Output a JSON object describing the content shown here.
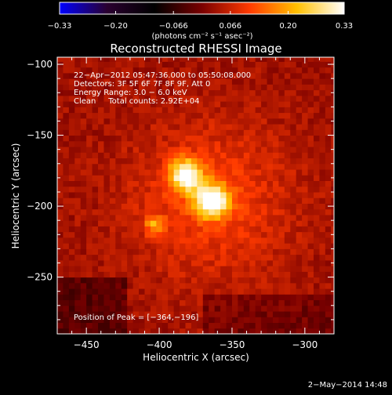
{
  "chart_data": {
    "type": "heatmap",
    "title": "Reconstructed RHESSI Image",
    "xlabel": "Heliocentric X (arcsec)",
    "ylabel": "Heliocentric Y (arcsec)",
    "xlim": [
      -470,
      -280
    ],
    "ylim": [
      -290,
      -95
    ],
    "xticks": [
      -450,
      -400,
      -350,
      -300
    ],
    "xtick_labels": [
      "−450",
      "−400",
      "−350",
      "−300"
    ],
    "yticks": [
      -100,
      -150,
      -200,
      -250
    ],
    "ytick_labels": [
      "−100",
      "−150",
      "−200",
      "−250"
    ],
    "colorbar": {
      "min": -0.33,
      "max": 0.33,
      "ticks": [
        -0.33,
        -0.2,
        -0.066,
        0.066,
        0.2,
        0.33
      ],
      "tick_labels": [
        "−0.33",
        "−0.20",
        "−0.066",
        "0.066",
        "0.20",
        "0.33"
      ],
      "unit_text": "(photons cm⁻² s⁻¹ asec⁻²)",
      "stops": [
        "#0000ff",
        "#2a0030",
        "#000000",
        "#7a0000",
        "#ff3a00",
        "#ffc000",
        "#ffffff"
      ]
    },
    "info_lines": [
      "22−Apr−2012 05:47:36.000 to 05:50:08.000",
      "Detectors: 3F 5F 6F 7F 8F 9F, Att 0",
      "Energy Range: 3.0 − 6.0 keV",
      "Clean     Total counts: 2.92E+04"
    ],
    "peak_label": "Position of Peak = [−364,−196]",
    "peak": [
      -364,
      -196
    ],
    "sources": [
      {
        "x": -364,
        "y": -196,
        "value": 0.33
      },
      {
        "x": -382,
        "y": -178,
        "value": 0.3
      },
      {
        "x": -403,
        "y": -213,
        "value": 0.15
      }
    ]
  },
  "footer": {
    "timestamp": "2−May−2014 14:48"
  }
}
